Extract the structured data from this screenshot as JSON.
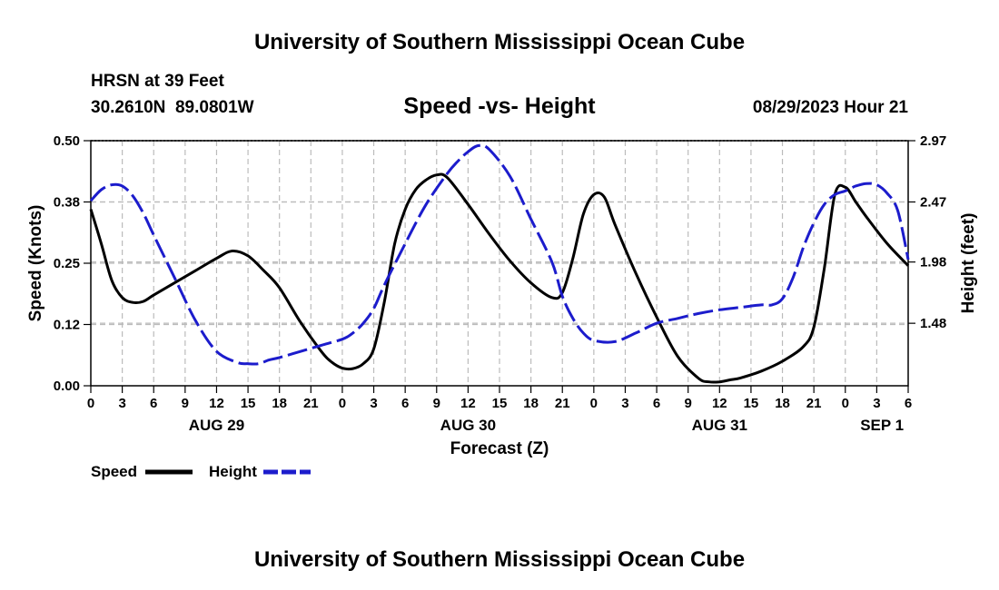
{
  "page": {
    "title_top": "University of Southern Mississippi Ocean Cube",
    "title_bottom": "University of Southern Mississippi Ocean Cube",
    "station": "HRSN at 39 Feet",
    "coordinates": "30.2610N  89.0801W",
    "chart_title": "Speed -vs- Height",
    "timestamp": "08/29/2023 Hour 21"
  },
  "colors": {
    "speed": "#000000",
    "height": "#1c1ccc",
    "grid": "#bbbbbb"
  },
  "chart_data": {
    "type": "line",
    "title": "Speed -vs- Height",
    "xlabel": "Forecast (Z)",
    "ylabel": "Speed (Knots)",
    "ylabel_right": "Height (feet)",
    "x_unit": "hours from AUG 29 00Z",
    "xlim": [
      0,
      78
    ],
    "ylim": [
      0,
      0.5
    ],
    "ylim_right": [
      0.97,
      2.97
    ],
    "x_ticks": [
      0,
      3,
      6,
      9,
      12,
      15,
      18,
      21,
      24,
      27,
      30,
      33,
      36,
      39,
      42,
      45,
      48,
      51,
      54,
      57,
      60,
      63,
      66,
      69,
      72,
      75,
      78
    ],
    "x_tick_labels": [
      "0",
      "3",
      "6",
      "9",
      "12",
      "15",
      "18",
      "21",
      "0",
      "3",
      "6",
      "9",
      "12",
      "15",
      "18",
      "21",
      "0",
      "3",
      "6",
      "9",
      "12",
      "15",
      "18",
      "21",
      "0",
      "3",
      "6"
    ],
    "date_labels": [
      {
        "x": 12,
        "label": "AUG 29"
      },
      {
        "x": 36,
        "label": "AUG 30"
      },
      {
        "x": 60,
        "label": "AUG 31"
      },
      {
        "x": 75.5,
        "label": "SEP 1"
      }
    ],
    "y_ticks": [
      0,
      0.125,
      0.25,
      0.375,
      0.5
    ],
    "y_tick_labels": [
      "0.00",
      "0.12",
      "0.25",
      "0.38",
      "0.50"
    ],
    "y_right_ticks": [
      1.48,
      1.98,
      2.47,
      2.97
    ],
    "y_right_tick_labels": [
      "1.48",
      "1.98",
      "2.47",
      "2.97"
    ],
    "legend": [
      {
        "name": "Speed",
        "style": "solid"
      },
      {
        "name": "Height",
        "style": "dashed"
      }
    ],
    "series": [
      {
        "name": "Speed",
        "axis": "left",
        "style": "solid",
        "x": [
          0,
          1,
          2,
          3,
          4,
          5,
          6,
          8,
          10,
          12,
          13.5,
          15,
          16.5,
          18,
          20,
          22,
          23,
          24,
          25,
          26,
          27,
          28,
          29,
          30,
          31,
          32,
          33,
          34,
          36,
          38,
          40,
          42,
          44,
          45,
          46,
          47,
          48,
          49,
          50,
          52,
          54,
          56,
          58,
          59,
          60,
          61,
          62,
          64,
          66,
          68,
          69,
          70,
          71,
          72,
          73,
          74,
          76,
          78
        ],
        "values": [
          0.36,
          0.29,
          0.215,
          0.18,
          0.17,
          0.172,
          0.185,
          0.21,
          0.235,
          0.26,
          0.275,
          0.265,
          0.235,
          0.2,
          0.13,
          0.07,
          0.048,
          0.036,
          0.035,
          0.045,
          0.075,
          0.17,
          0.29,
          0.36,
          0.4,
          0.42,
          0.43,
          0.425,
          0.37,
          0.31,
          0.255,
          0.21,
          0.18,
          0.19,
          0.26,
          0.35,
          0.39,
          0.385,
          0.33,
          0.23,
          0.14,
          0.06,
          0.015,
          0.008,
          0.008,
          0.012,
          0.016,
          0.03,
          0.05,
          0.08,
          0.12,
          0.24,
          0.39,
          0.405,
          0.375,
          0.345,
          0.29,
          0.245
        ]
      },
      {
        "name": "Height",
        "axis": "right",
        "style": "dashed",
        "x": [
          0,
          1,
          2,
          3,
          4,
          5,
          6,
          8,
          10,
          12,
          14,
          15,
          16,
          17,
          18,
          20,
          22,
          24,
          25,
          26,
          27,
          28,
          30,
          32,
          34,
          35,
          36,
          37,
          38,
          40,
          42,
          44,
          45,
          46,
          47,
          48,
          50,
          52,
          54,
          56,
          58,
          60,
          62,
          64,
          65,
          66,
          67,
          68,
          69,
          70,
          71,
          72,
          73,
          74,
          75,
          76,
          77,
          78
        ],
        "values": [
          2.48,
          2.57,
          2.61,
          2.6,
          2.52,
          2.38,
          2.2,
          1.85,
          1.5,
          1.25,
          1.16,
          1.15,
          1.15,
          1.18,
          1.2,
          1.25,
          1.3,
          1.35,
          1.4,
          1.48,
          1.6,
          1.79,
          2.13,
          2.45,
          2.7,
          2.8,
          2.88,
          2.93,
          2.9,
          2.68,
          2.33,
          1.98,
          1.7,
          1.52,
          1.4,
          1.34,
          1.33,
          1.4,
          1.48,
          1.52,
          1.56,
          1.59,
          1.61,
          1.63,
          1.63,
          1.68,
          1.85,
          2.1,
          2.3,
          2.45,
          2.53,
          2.56,
          2.6,
          2.62,
          2.61,
          2.54,
          2.4,
          2.0
        ]
      }
    ]
  }
}
